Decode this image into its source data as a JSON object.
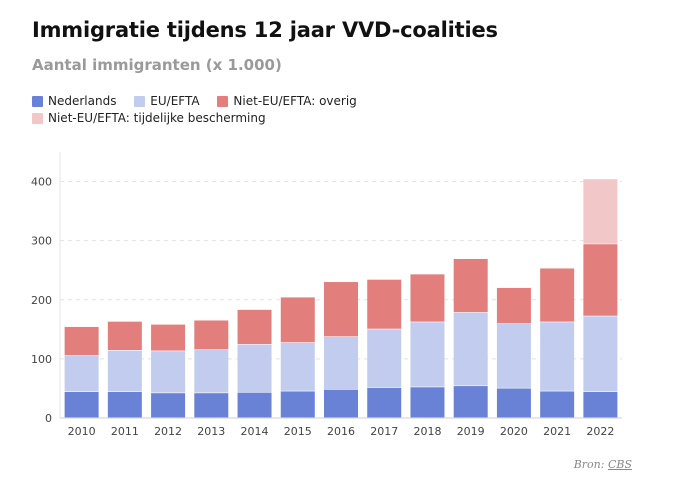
{
  "header": {
    "title": "Immigratie tijdens 12 jaar VVD-coalities",
    "subtitle": "Aantal immigranten (x 1.000)"
  },
  "footer": {
    "source_label": "Bron:",
    "source_link": "CBS"
  },
  "chart_data": {
    "type": "bar",
    "stacked": true,
    "categories": [
      "2010",
      "2011",
      "2012",
      "2013",
      "2014",
      "2015",
      "2016",
      "2017",
      "2018",
      "2019",
      "2020",
      "2021",
      "2022"
    ],
    "series": [
      {
        "name": "Nederlands",
        "color": "#6a82d6",
        "values": [
          44,
          44,
          42,
          42,
          43,
          45,
          48,
          51,
          52,
          54,
          50,
          45,
          44
        ]
      },
      {
        "name": "EU/EFTA",
        "color": "#c1ccef",
        "values": [
          61,
          70,
          71,
          73,
          81,
          82,
          89,
          99,
          110,
          124,
          109,
          117,
          128
        ]
      },
      {
        "name": "Niet-EU/EFTA: overig",
        "color": "#e27e7b",
        "values": [
          49,
          49,
          45,
          50,
          59,
          77,
          93,
          84,
          81,
          91,
          61,
          91,
          122
        ]
      },
      {
        "name": "Niet-EU/EFTA: tijdelijke bescherming",
        "color": "#f1c7c8",
        "values": [
          0,
          0,
          0,
          0,
          0,
          0,
          0,
          0,
          0,
          0,
          0,
          0,
          110
        ]
      }
    ],
    "yticks": [
      0,
      100,
      200,
      300,
      400
    ],
    "ylim": [
      0,
      450
    ],
    "grid": true,
    "legend_position": "top-left"
  }
}
